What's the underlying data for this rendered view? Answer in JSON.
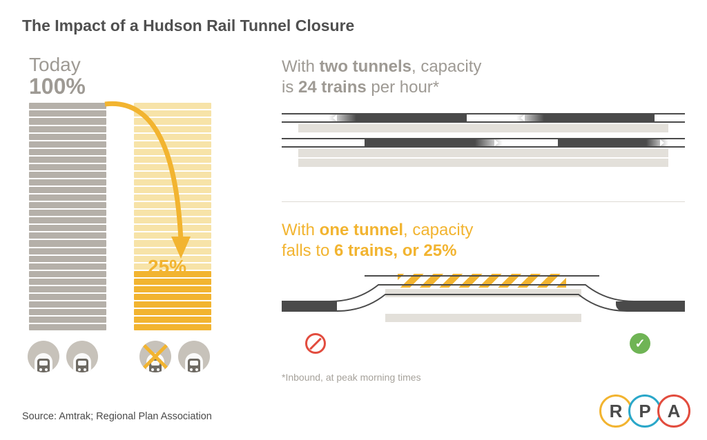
{
  "title": "The Impact of a Hudson Rail Tunnel Closure",
  "left": {
    "today_label": "Today",
    "today_pct": "100%",
    "reduced_pct": "25%",
    "bar": {
      "segments_total": 30,
      "segments_filled_reduced": 8,
      "color_full": "#b5b0a9",
      "color_reduced_light": "#f7e3a8",
      "color_reduced_dark": "#f2b430"
    },
    "arrow_color": "#f2b430"
  },
  "right": {
    "two_tunnel": {
      "line1_prefix": "With ",
      "line1_bold": "two tunnels",
      "line1_suffix": ", capacity",
      "line2_prefix": "is ",
      "line2_bold": "24 trains",
      "line2_suffix": " per hour*"
    },
    "one_tunnel": {
      "line1_prefix": "With ",
      "line1_bold": "one tunnel",
      "line1_suffix": ", capacity",
      "line2_prefix": "falls to ",
      "line2_bold": "6 trains, or 25%",
      "line2_suffix": ""
    },
    "footnote": "*Inbound, at peak morning times",
    "colors": {
      "gray_text": "#9e9a94",
      "yellow_text": "#f2b430",
      "track": "#4a4a4a",
      "track_shadow": "#e3e0da",
      "no_entry": "#e24c3e",
      "ok": "#6fb455"
    }
  },
  "source": "Source: Amtrak; Regional Plan Association",
  "logo": {
    "letters": [
      "R",
      "P",
      "A"
    ],
    "ring_colors": [
      "#f2b430",
      "#2aa7c9",
      "#e24c3e"
    ]
  }
}
